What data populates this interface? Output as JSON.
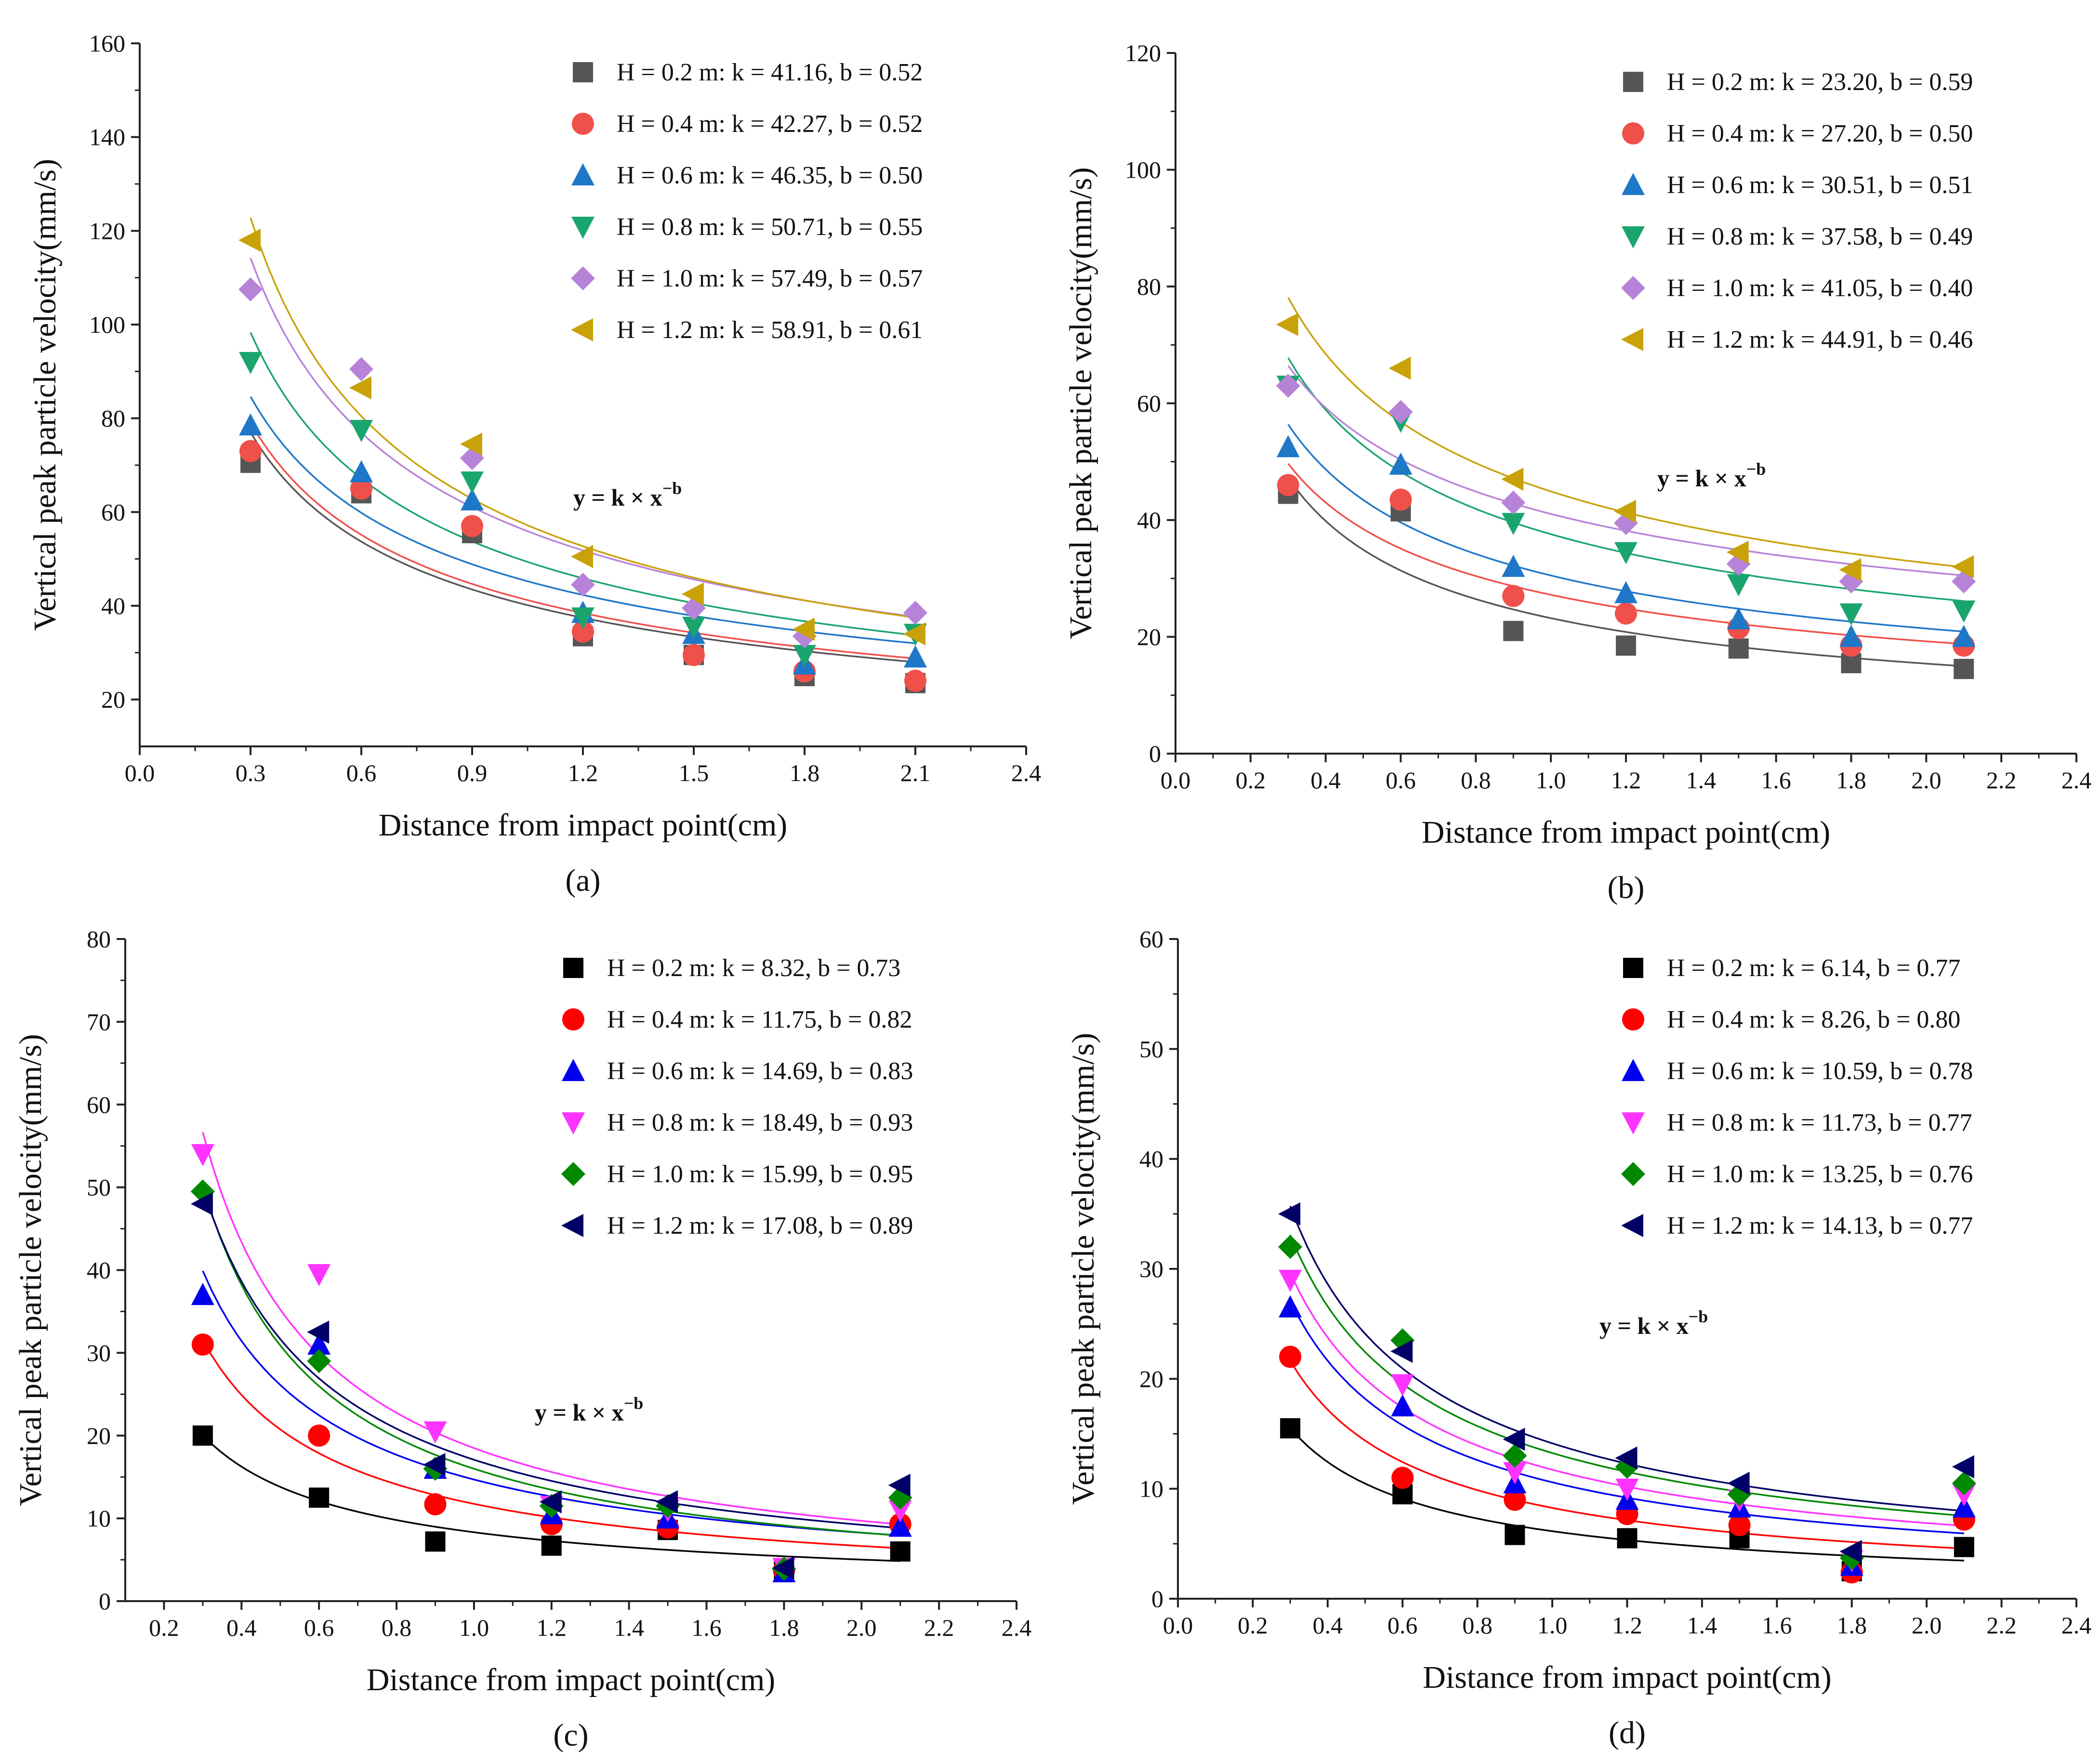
{
  "charts": [
    {
      "id": "a",
      "label": "(a)",
      "type": "scatter",
      "xlabel": "Distance from impact point(cm)",
      "ylabel": "Vertical peak particle velocity(mm/s)",
      "formula": "y = k × x",
      "formula_exp": "−b",
      "xlim": [
        0.0,
        2.4
      ],
      "ylim": [
        10,
        160
      ],
      "xticks": [
        0.0,
        0.3,
        0.6,
        0.9,
        1.2,
        1.5,
        1.8,
        2.1,
        2.4
      ],
      "xtick_labels": [
        "0.0",
        "0.3",
        "0.6",
        "0.9",
        "1.2",
        "1.5",
        "1.8",
        "2.1",
        "2.4"
      ],
      "yticks": [
        20,
        40,
        60,
        80,
        100,
        120,
        140,
        160
      ],
      "ytick_labels": [
        "20",
        "40",
        "60",
        "80",
        "100",
        "120",
        "140",
        "160"
      ],
      "x": [
        0.3,
        0.6,
        0.9,
        1.2,
        1.5,
        1.8,
        2.1
      ],
      "series": [
        {
          "name": "H = 0.2 m: k = 41.16, b = 0.52",
          "k": 41.16,
          "b": 0.52,
          "marker": "square",
          "color": "#555555",
          "values": [
            70.5,
            64,
            55.5,
            33.5,
            29.5,
            25,
            23.5
          ]
        },
        {
          "name": "H = 0.4 m: k = 42.27, b = 0.52",
          "k": 42.27,
          "b": 0.52,
          "marker": "circle",
          "color": "#f0504a",
          "values": [
            73,
            65,
            57,
            34.5,
            29.5,
            26,
            24
          ]
        },
        {
          "name": "H = 0.6 m: k = 46.35, b = 0.50",
          "k": 46.35,
          "b": 0.5,
          "marker": "triangle-up",
          "color": "#1f77c8",
          "values": [
            78.5,
            68.5,
            62.5,
            38.5,
            34,
            27.5,
            29
          ]
        },
        {
          "name": "H = 0.8 m: k = 50.71, b = 0.55",
          "k": 50.71,
          "b": 0.55,
          "marker": "triangle-down",
          "color": "#1aa56e",
          "values": [
            92,
            77.5,
            66.5,
            37.5,
            35.5,
            29.5,
            34
          ]
        },
        {
          "name": "H = 1.0 m: k = 57.49, b = 0.57",
          "k": 57.49,
          "b": 0.57,
          "marker": "diamond",
          "color": "#b783d9",
          "values": [
            107.5,
            90.5,
            71.5,
            44.5,
            39.5,
            33.5,
            38.5
          ]
        },
        {
          "name": "H = 1.2 m: k = 58.91, b = 0.61",
          "k": 58.91,
          "b": 0.61,
          "marker": "triangle-left",
          "color": "#c9a20a",
          "values": [
            118,
            86.5,
            74.5,
            50.5,
            42.5,
            35,
            34
          ]
        }
      ]
    },
    {
      "id": "b",
      "label": "(b)",
      "type": "scatter",
      "xlabel": "Distance from impact point(cm)",
      "ylabel": "Vertical peak particle velocity(mm/s)",
      "formula": "y = k × x",
      "formula_exp": "−b",
      "xlim": [
        0.0,
        2.4
      ],
      "ylim": [
        0,
        120
      ],
      "xticks": [
        0.0,
        0.2,
        0.4,
        0.6,
        0.8,
        1.0,
        1.2,
        1.4,
        1.6,
        1.8,
        2.0,
        2.2,
        2.4
      ],
      "xtick_labels": [
        "0.0",
        "0.2",
        "0.4",
        "0.6",
        "0.8",
        "1.0",
        "1.2",
        "1.4",
        "1.6",
        "1.8",
        "2.0",
        "2.2",
        "2.4"
      ],
      "yticks": [
        0,
        20,
        40,
        60,
        80,
        100,
        120
      ],
      "ytick_labels": [
        "0",
        "20",
        "40",
        "60",
        "80",
        "100",
        "120"
      ],
      "x": [
        0.3,
        0.6,
        0.9,
        1.2,
        1.5,
        1.8,
        2.1
      ],
      "series": [
        {
          "name": "H = 0.2 m: k = 23.20, b = 0.59",
          "k": 23.2,
          "b": 0.59,
          "marker": "square",
          "color": "#555555",
          "values": [
            44.5,
            41.5,
            21,
            18.5,
            18,
            15.5,
            14.5
          ]
        },
        {
          "name": "H = 0.4 m: k = 27.20, b = 0.50",
          "k": 27.2,
          "b": 0.5,
          "marker": "circle",
          "color": "#f0504a",
          "values": [
            46,
            43.5,
            27,
            24,
            21.5,
            18.5,
            18.5
          ]
        },
        {
          "name": "H = 0.6 m: k = 30.51, b = 0.51",
          "k": 30.51,
          "b": 0.51,
          "marker": "triangle-up",
          "color": "#1f77c8",
          "values": [
            52.5,
            49.5,
            32,
            27.5,
            23,
            20,
            20
          ]
        },
        {
          "name": "H = 0.8 m: k = 37.58, b = 0.49",
          "k": 37.58,
          "b": 0.49,
          "marker": "triangle-down",
          "color": "#1aa56e",
          "values": [
            63,
            57,
            39.5,
            34.5,
            29,
            24,
            24.5
          ]
        },
        {
          "name": "H = 1.0 m: k = 41.05, b = 0.40",
          "k": 41.05,
          "b": 0.4,
          "marker": "diamond",
          "color": "#b783d9",
          "values": [
            63,
            58.5,
            43,
            39.5,
            32.5,
            29.5,
            29.5
          ]
        },
        {
          "name": "H = 1.2 m: k = 44.91, b = 0.46",
          "k": 44.91,
          "b": 0.46,
          "marker": "triangle-left",
          "color": "#c9a20a",
          "values": [
            73.5,
            66,
            47,
            41.5,
            34.5,
            31.5,
            32
          ]
        }
      ]
    },
    {
      "id": "c",
      "label": "(c)",
      "type": "scatter",
      "xlabel": "Distance from impact point(cm)",
      "ylabel": "Vertical peak particle velocity(mm/s)",
      "formula": "y = k × x",
      "formula_exp": "−b",
      "xlim": [
        0.1,
        2.4
      ],
      "ylim": [
        0,
        80
      ],
      "xticks": [
        0.2,
        0.4,
        0.6,
        0.8,
        1.0,
        1.2,
        1.4,
        1.6,
        1.8,
        2.0,
        2.2,
        2.4
      ],
      "xtick_labels": [
        "0.2",
        "0.4",
        "0.6",
        "0.8",
        "1.0",
        "1.2",
        "1.4",
        "1.6",
        "1.8",
        "2.0",
        "2.2",
        "2.4"
      ],
      "yticks": [
        0,
        10,
        20,
        30,
        40,
        50,
        60,
        70,
        80
      ],
      "ytick_labels": [
        "0",
        "10",
        "20",
        "30",
        "40",
        "50",
        "60",
        "70",
        "80"
      ],
      "x": [
        0.3,
        0.6,
        0.9,
        1.2,
        1.5,
        1.8,
        2.1
      ],
      "series": [
        {
          "name": "H = 0.2 m: k = 8.32, b = 0.73",
          "k": 8.32,
          "b": 0.73,
          "marker": "square",
          "color": "#000000",
          "values": [
            20,
            12.5,
            7.2,
            6.7,
            8.6,
            3.6,
            6
          ]
        },
        {
          "name": "H = 0.4 m: k = 11.75, b = 0.82",
          "k": 11.75,
          "b": 0.82,
          "marker": "circle",
          "color": "#ff0000",
          "values": [
            31,
            20,
            11.7,
            9.3,
            8.9,
            3.7,
            9.3
          ]
        },
        {
          "name": "H = 0.6 m: k = 14.69, b = 0.83",
          "k": 14.69,
          "b": 0.83,
          "marker": "triangle-up",
          "color": "#0000ee",
          "values": [
            37,
            31,
            16,
            10.5,
            10,
            3.5,
            9
          ]
        },
        {
          "name": "H = 0.8 m: k = 18.49, b = 0.93",
          "k": 18.49,
          "b": 0.93,
          "marker": "triangle-down",
          "color": "#ff33ff",
          "values": [
            54,
            39.5,
            20.5,
            11.5,
            11,
            4,
            11
          ]
        },
        {
          "name": "H = 1.0 m: k = 15.99, b = 0.95",
          "k": 15.99,
          "b": 0.95,
          "marker": "diamond",
          "color": "#008800",
          "values": [
            49.5,
            29,
            16,
            11.5,
            11.5,
            3.9,
            12.5
          ]
        },
        {
          "name": "H = 1.2 m: k = 17.08, b = 0.89",
          "k": 17.08,
          "b": 0.89,
          "marker": "triangle-left",
          "color": "#000066",
          "values": [
            48,
            32.5,
            16.5,
            12,
            12,
            4,
            14
          ]
        }
      ]
    },
    {
      "id": "d",
      "label": "(d)",
      "type": "scatter",
      "xlabel": "Distance from impact point(cm)",
      "ylabel": "Vertical peak particle velocity(mm/s)",
      "formula": "y = k × x",
      "formula_exp": "−b",
      "xlim": [
        0.0,
        2.4
      ],
      "ylim": [
        0,
        60
      ],
      "xticks": [
        0.0,
        0.2,
        0.4,
        0.6,
        0.8,
        1.0,
        1.2,
        1.4,
        1.6,
        1.8,
        2.0,
        2.2,
        2.4
      ],
      "xtick_labels": [
        "0.0",
        "0.2",
        "0.4",
        "0.6",
        "0.8",
        "1.0",
        "1.2",
        "1.4",
        "1.6",
        "1.8",
        "2.0",
        "2.2",
        "2.4"
      ],
      "yticks": [
        0,
        10,
        20,
        30,
        40,
        50,
        60
      ],
      "ytick_labels": [
        "0",
        "10",
        "20",
        "30",
        "40",
        "50",
        "60"
      ],
      "x": [
        0.3,
        0.6,
        0.9,
        1.2,
        1.5,
        1.8,
        2.1
      ],
      "series": [
        {
          "name": "H = 0.2 m: k = 6.14, b = 0.77",
          "k": 6.14,
          "b": 0.77,
          "marker": "square",
          "color": "#000000",
          "values": [
            15.5,
            9.5,
            5.8,
            5.5,
            5.5,
            2.5,
            4.7
          ]
        },
        {
          "name": "H = 0.4 m: k = 8.26, b = 0.80",
          "k": 8.26,
          "b": 0.8,
          "marker": "circle",
          "color": "#ff0000",
          "values": [
            22,
            11,
            9,
            7.7,
            6.7,
            2.4,
            7.2
          ]
        },
        {
          "name": "H = 0.6 m: k = 10.59, b = 0.78",
          "k": 10.59,
          "b": 0.78,
          "marker": "triangle-up",
          "color": "#0000ee",
          "values": [
            26.5,
            17.5,
            10.5,
            9,
            8.3,
            3,
            8.3
          ]
        },
        {
          "name": "H = 0.8 m: k = 11.73, b = 0.77",
          "k": 11.73,
          "b": 0.77,
          "marker": "triangle-down",
          "color": "#ff33ff",
          "values": [
            29,
            19.5,
            11.5,
            10,
            9,
            3.5,
            9.5
          ]
        },
        {
          "name": "H = 1.0 m: k = 13.25, b = 0.76",
          "k": 13.25,
          "b": 0.76,
          "marker": "diamond",
          "color": "#008800",
          "values": [
            32,
            23.5,
            13,
            12,
            9.5,
            3.7,
            10.5
          ]
        },
        {
          "name": "H = 1.2 m: k = 14.13, b = 0.77",
          "k": 14.13,
          "b": 0.77,
          "marker": "triangle-left",
          "color": "#000066",
          "values": [
            35,
            22.5,
            14.5,
            12.8,
            10.5,
            4.3,
            12
          ]
        }
      ]
    }
  ]
}
